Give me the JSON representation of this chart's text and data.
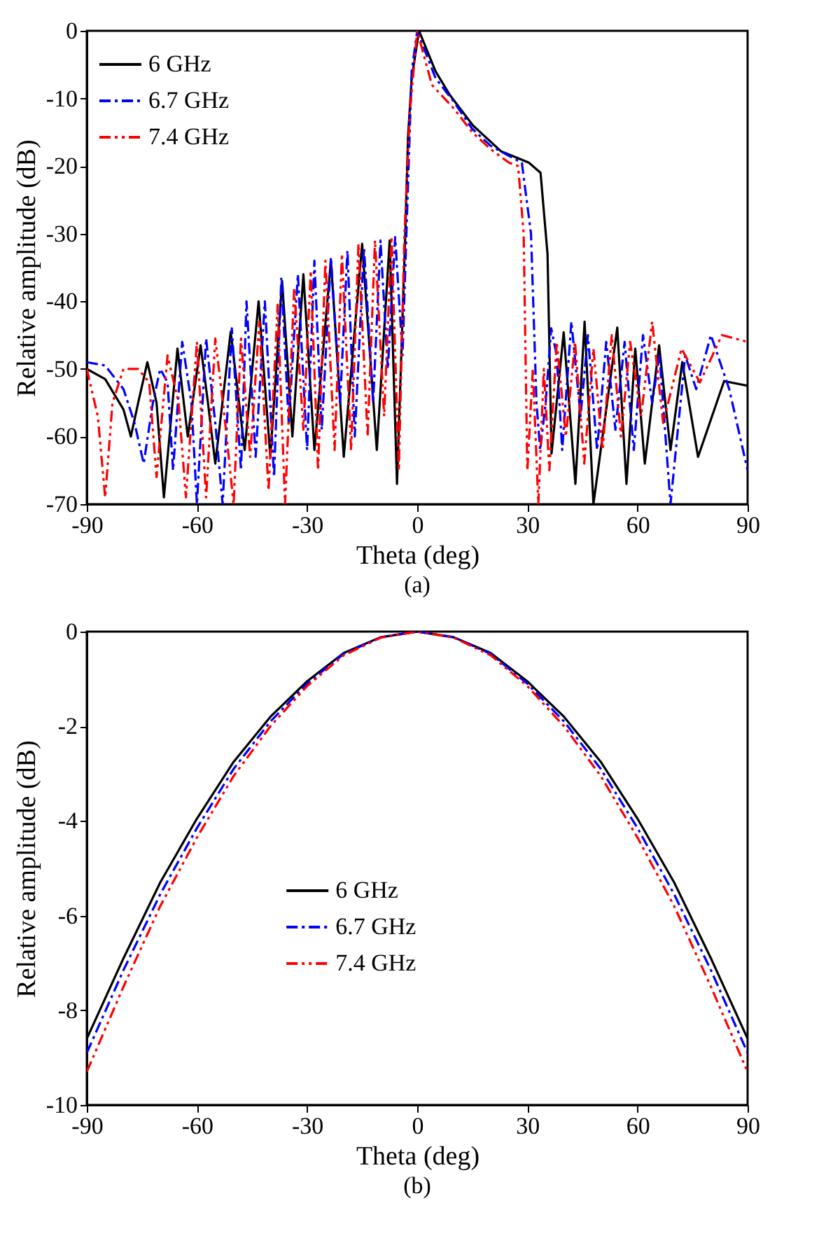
{
  "chart_data": [
    {
      "type": "line",
      "xlabel": "Theta (deg)",
      "ylabel": "Relative amplitude (dB)",
      "annotations": [
        "(a)"
      ],
      "xlim": [
        -90,
        90
      ],
      "xticks": [
        -90,
        -60,
        -30,
        0,
        30,
        60,
        90
      ],
      "ylim": [
        -70,
        0
      ],
      "yticks": [
        -70,
        -60,
        -50,
        -40,
        -30,
        -20,
        -10,
        0
      ],
      "legend": "top left",
      "series": [
        {
          "name": "6 GHz",
          "color": "#000000",
          "line_style": "solid",
          "x": [
            -90,
            -85,
            -80,
            -78,
            -76,
            -73.5,
            -71,
            -69,
            -65.3,
            -62.5,
            -59,
            -57,
            -55,
            -50.8,
            -47,
            -43.2,
            -40,
            -36.8,
            -34,
            -31,
            -28,
            -23.5,
            -20,
            -15,
            -11,
            -7.5,
            -5.5,
            -3.3,
            -2.5,
            -1.5,
            0.5,
            5,
            8.9,
            15.2,
            22.8,
            26,
            30.4,
            33.6,
            35.5,
            36.6,
            39.9,
            43.1,
            45.6,
            48,
            54.5,
            57,
            59.4,
            62,
            65.9,
            69,
            72.2,
            76.5,
            83.6,
            90
          ],
          "values": [
            -50,
            -51.5,
            -56,
            -60,
            -55,
            -49,
            -55,
            -69,
            -47,
            -60,
            -46.5,
            -55,
            -64,
            -44.5,
            -62,
            -40,
            -63,
            -37,
            -60,
            -36,
            -62,
            -34,
            -63,
            -31.5,
            -62,
            -31,
            -67,
            -31,
            -15.7,
            -7,
            0,
            -6,
            -9.5,
            -14,
            -17.8,
            -18.5,
            -19.5,
            -21,
            -33,
            -62.5,
            -44.6,
            -67,
            -43,
            -70,
            -43.9,
            -67,
            -47,
            -64,
            -46.5,
            -62,
            -49,
            -63,
            -51.8,
            -52.5
          ]
        },
        {
          "name": "6.7 GHz",
          "color": "#0000ff",
          "line_style": "dashdot",
          "x": [
            -90,
            -85,
            -80,
            -77,
            -74.5,
            -72,
            -70,
            -68,
            -66.5,
            -64,
            -61.5,
            -60,
            -57.5,
            -55,
            -53,
            -50.5,
            -48,
            -46.5,
            -44,
            -41.5,
            -39,
            -37,
            -35,
            -32.5,
            -30,
            -28,
            -26,
            -23.5,
            -21,
            -19,
            -17,
            -14.5,
            -12,
            -10,
            -8,
            -6,
            -4,
            -3,
            -1.5,
            0,
            5,
            10,
            15,
            20,
            25,
            28.5,
            31,
            32.5,
            33.5,
            35,
            36.5,
            38,
            39.5,
            42,
            44.5,
            46.5,
            49,
            51.5,
            54,
            56.5,
            59,
            61.5,
            64,
            66,
            69,
            73,
            76,
            80,
            85,
            90
          ],
          "values": [
            -49,
            -49.5,
            -53,
            -58,
            -64,
            -55,
            -50,
            -52,
            -65,
            -46,
            -55,
            -70,
            -45.5,
            -58,
            -70,
            -44,
            -65,
            -40,
            -63,
            -40,
            -66,
            -36.5,
            -58,
            -36,
            -62,
            -34,
            -59,
            -33.5,
            -55,
            -32.5,
            -60,
            -32,
            -55,
            -31,
            -50,
            -30.5,
            -48,
            -31,
            -6,
            0,
            -7,
            -10.5,
            -14.5,
            -17,
            -18.5,
            -19.5,
            -30,
            -55,
            -62,
            -55,
            -44,
            -48,
            -62,
            -43,
            -57,
            -45,
            -62,
            -46,
            -59,
            -46,
            -62,
            -45,
            -55,
            -48,
            -70,
            -48,
            -53,
            -45,
            -53,
            -65
          ]
        },
        {
          "name": "7.4 GHz",
          "color": "#ff0000",
          "line_style": "dashdotdot",
          "x": [
            -90,
            -87,
            -85,
            -83,
            -80,
            -76,
            -73,
            -71,
            -68,
            -65,
            -63,
            -60,
            -57.5,
            -55,
            -52.5,
            -50,
            -48,
            -45.5,
            -43,
            -40.5,
            -38,
            -36,
            -33.5,
            -31,
            -29,
            -27,
            -25,
            -22.5,
            -20.5,
            -18,
            -16,
            -13.5,
            -11.5,
            -9,
            -7,
            -5,
            -3.5,
            -2,
            0,
            4,
            10,
            15,
            20,
            25,
            27.5,
            29,
            30,
            31.5,
            33,
            34.5,
            36,
            38,
            40.5,
            43,
            45.5,
            48,
            50.5,
            53,
            55.5,
            58,
            61,
            64,
            67,
            72,
            77,
            83,
            90
          ],
          "values": [
            -50,
            -57,
            -69,
            -55,
            -50,
            -50,
            -52,
            -66,
            -48,
            -55,
            -69,
            -46,
            -69,
            -45.5,
            -57,
            -70,
            -45.5,
            -63,
            -43,
            -68,
            -40.5,
            -70,
            -38,
            -59,
            -35.5,
            -65,
            -34,
            -62,
            -33,
            -62,
            -31.5,
            -60,
            -31,
            -57,
            -30.5,
            -65,
            -30.5,
            -12,
            0,
            -8,
            -11.5,
            -15,
            -17.5,
            -19.5,
            -20,
            -30,
            -65,
            -50,
            -70,
            -50,
            -65,
            -46,
            -60,
            -46,
            -64,
            -47,
            -62,
            -45,
            -60,
            -46,
            -57,
            -43,
            -58,
            -47,
            -52,
            -45,
            -46
          ]
        }
      ]
    },
    {
      "type": "line",
      "xlabel": "Theta (deg)",
      "ylabel": "Relative amplitude (dB)",
      "annotations": [
        "(b)"
      ],
      "xlim": [
        -90,
        90
      ],
      "xticks": [
        -90,
        -60,
        -30,
        0,
        30,
        60,
        90
      ],
      "ylim": [
        -10,
        0
      ],
      "yticks": [
        -10,
        -8,
        -6,
        -4,
        -2,
        0
      ],
      "legend": "center",
      "x": [
        -90,
        -80,
        -70,
        -60,
        -50,
        -40,
        -30,
        -20,
        -10,
        0,
        10,
        20,
        30,
        40,
        50,
        60,
        70,
        80,
        90
      ],
      "series": [
        {
          "name": "6 GHz",
          "color": "#000000",
          "line_style": "solid",
          "values": [
            -8.6,
            -6.9,
            -5.3,
            -3.95,
            -2.75,
            -1.8,
            -1.05,
            -0.45,
            -0.12,
            0,
            -0.12,
            -0.45,
            -1.05,
            -1.8,
            -2.75,
            -3.95,
            -5.3,
            -6.9,
            -8.6
          ]
        },
        {
          "name": "6.7 GHz",
          "color": "#0000ff",
          "line_style": "dashdot",
          "values": [
            -8.9,
            -7.15,
            -5.55,
            -4.15,
            -2.9,
            -1.9,
            -1.1,
            -0.47,
            -0.12,
            0,
            -0.12,
            -0.47,
            -1.1,
            -1.9,
            -2.9,
            -4.15,
            -5.55,
            -7.15,
            -8.9
          ]
        },
        {
          "name": "7.4 GHz",
          "color": "#ff0000",
          "line_style": "dashdotdot",
          "values": [
            -9.3,
            -7.5,
            -5.8,
            -4.35,
            -3.05,
            -2.0,
            -1.15,
            -0.5,
            -0.13,
            0,
            -0.13,
            -0.5,
            -1.15,
            -2.0,
            -3.05,
            -4.35,
            -5.8,
            -7.5,
            -9.3
          ]
        }
      ]
    }
  ]
}
